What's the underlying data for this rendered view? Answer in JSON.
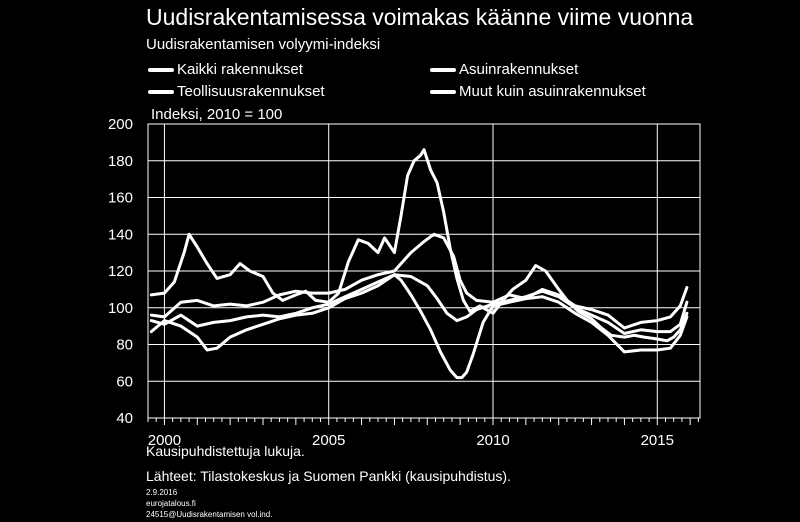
{
  "chart_data": {
    "type": "line",
    "title": "Uudisrakentamisessa voimakas käänne viime vuonna",
    "subtitle": "Uudisrakentamisen  volyymi-indeksi",
    "ylabel": "Indeksi, 2010 = 100",
    "ylim": [
      40,
      200
    ],
    "yticks": [
      "200",
      "180",
      "160",
      "140",
      "120",
      "100",
      "80",
      "60",
      "40"
    ],
    "xlim": [
      1999.5,
      2016.3
    ],
    "xticks": [
      {
        "value": 2000,
        "label": "2000"
      },
      {
        "value": 2005,
        "label": "2005"
      },
      {
        "value": 2010,
        "label": "2010"
      },
      {
        "value": 2015,
        "label": "2015"
      }
    ],
    "legend": [
      "Kaikki rakennukset",
      "Asuinrakennukset",
      "Teollisuusrakennukset",
      "Muut kuin asuinrakennukset"
    ],
    "series": [
      {
        "name": "Teollisuusrakennukset",
        "x": [
          1999.6,
          2000.0,
          2000.3,
          2000.6,
          2000.75,
          2001.0,
          2001.3,
          2001.6,
          2002.0,
          2002.3,
          2002.6,
          2003.0,
          2003.3,
          2003.6,
          2004.0,
          2004.3,
          2004.6,
          2005.0,
          2005.3,
          2005.6,
          2005.9,
          2006.2,
          2006.5,
          2006.7,
          2007.0,
          2007.2,
          2007.4,
          2007.6,
          2007.8,
          2007.9,
          2008.1,
          2008.3,
          2008.5,
          2008.7,
          2008.9,
          2009.1,
          2009.3,
          2009.6,
          2010.0,
          2010.3,
          2010.6,
          2011.0,
          2011.3,
          2011.6,
          2012.0,
          2012.3,
          2012.6,
          2013.0,
          2013.3,
          2013.6,
          2014.0,
          2014.3,
          2014.6,
          2015.0,
          2015.3,
          2015.5,
          2015.7,
          2015.9
        ],
        "y": [
          107,
          108,
          114,
          130,
          140,
          133,
          124,
          116,
          118,
          124,
          120,
          117,
          108,
          104,
          107,
          109,
          104,
          103,
          108,
          125,
          137,
          135,
          130,
          138,
          130,
          150,
          172,
          180,
          183,
          186,
          175,
          168,
          152,
          132,
          116,
          104,
          98,
          101,
          97,
          104,
          110,
          115,
          123,
          120,
          110,
          103,
          98,
          94,
          89,
          85,
          84,
          85,
          84,
          83,
          82,
          84,
          88,
          97
        ]
      },
      {
        "name": "Muut kuin asuinrakennukset",
        "x": [
          1999.6,
          2000.0,
          2000.5,
          2001.0,
          2001.5,
          2002.0,
          2002.5,
          2003.0,
          2003.5,
          2004.0,
          2004.5,
          2005.0,
          2005.5,
          2006.0,
          2006.5,
          2007.0,
          2007.5,
          2007.9,
          2008.2,
          2008.5,
          2008.8,
          2009.0,
          2009.2,
          2009.5,
          2010.0,
          2010.5,
          2011.0,
          2011.5,
          2012.0,
          2012.5,
          2013.0,
          2013.5,
          2014.0,
          2014.5,
          2015.0,
          2015.4,
          2015.7,
          2015.9
        ],
        "y": [
          96,
          95,
          103,
          104,
          101,
          102,
          101,
          103,
          107,
          109,
          108,
          108,
          110,
          115,
          118,
          120,
          130,
          136,
          140,
          138,
          128,
          115,
          108,
          104,
          103,
          107,
          105,
          110,
          107,
          101,
          99,
          96,
          89,
          92,
          93,
          95,
          101,
          111
        ]
      },
      {
        "name": "Kaikki rakennukset",
        "x": [
          1999.6,
          2000.0,
          2000.5,
          2001.0,
          2001.5,
          2002.0,
          2002.5,
          2003.0,
          2003.5,
          2004.0,
          2004.5,
          2005.0,
          2005.5,
          2006.0,
          2006.5,
          2007.0,
          2007.5,
          2008.0,
          2008.3,
          2008.6,
          2008.9,
          2009.2,
          2009.5,
          2010.0,
          2010.5,
          2011.0,
          2011.5,
          2012.0,
          2012.5,
          2013.0,
          2013.5,
          2014.0,
          2014.5,
          2015.0,
          2015.4,
          2015.7,
          2015.9
        ],
        "y": [
          93,
          91,
          96,
          90,
          92,
          93,
          95,
          96,
          95,
          97,
          100,
          102,
          106,
          110,
          114,
          118,
          117,
          112,
          105,
          97,
          93,
          95,
          99,
          102,
          104,
          106,
          109,
          106,
          100,
          96,
          92,
          86,
          88,
          87,
          87,
          91,
          103
        ]
      },
      {
        "name": "Asuinrakennukset",
        "x": [
          1999.6,
          2000.0,
          2000.5,
          2001.0,
          2001.3,
          2001.6,
          2002.0,
          2002.5,
          2003.0,
          2003.5,
          2004.0,
          2004.5,
          2005.0,
          2005.5,
          2006.0,
          2006.5,
          2007.0,
          2007.2,
          2007.5,
          2007.8,
          2008.1,
          2008.4,
          2008.7,
          2008.9,
          2009.05,
          2009.2,
          2009.4,
          2009.7,
          2010.0,
          2010.5,
          2011.0,
          2011.5,
          2012.0,
          2012.5,
          2013.0,
          2013.5,
          2014.0,
          2014.5,
          2015.0,
          2015.4,
          2015.7,
          2015.9
        ],
        "y": [
          87,
          93,
          90,
          84,
          77,
          78,
          84,
          88,
          91,
          94,
          96,
          97,
          100,
          105,
          108,
          112,
          118,
          115,
          107,
          98,
          88,
          76,
          66,
          62,
          62,
          65,
          75,
          92,
          101,
          103,
          105,
          106,
          103,
          97,
          92,
          85,
          76,
          77,
          77,
          78,
          85,
          95
        ]
      }
    ],
    "footnote": "Kausipuhdistettuja lukuja.",
    "source": "Lähteet: Tilastokeskus ja Suomen Pankki (kausipuhdistus).",
    "date": "2.9.2016",
    "site": "eurojatalous.fi",
    "file_ref": "24515@Uudisrakentamisen vol.ind."
  }
}
